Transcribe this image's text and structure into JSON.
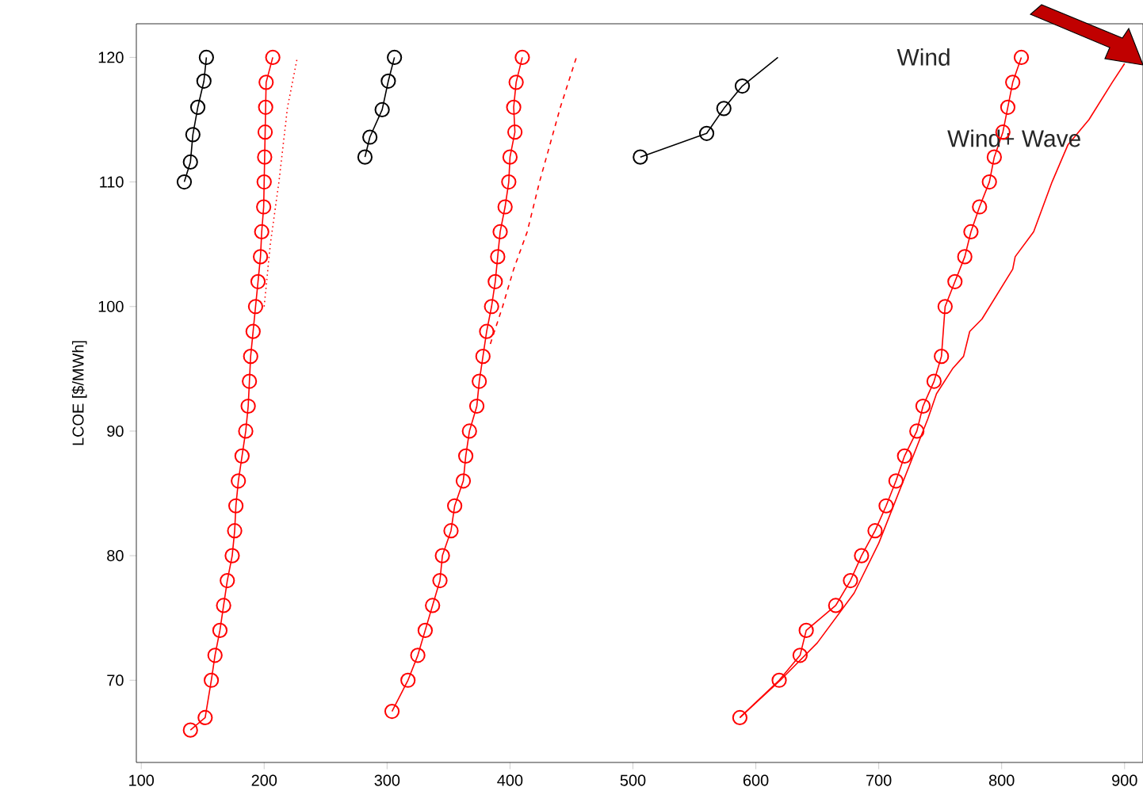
{
  "chart_data": {
    "type": "line",
    "ylabel": "LCOE [$/MWh]",
    "xlim": [
      96,
      915
    ],
    "ylim": [
      63.4,
      122.7
    ],
    "xticks": [
      100,
      200,
      300,
      400,
      500,
      600,
      700,
      800,
      900
    ],
    "yticks": [
      70,
      80,
      90,
      100,
      110,
      120
    ],
    "grid": false,
    "annotations": [
      "Wind",
      "Wind+ Wave"
    ],
    "series": [
      {
        "color": "#000000",
        "marker": "circle",
        "line_style": "solid",
        "x": [
          135,
          140,
          142,
          146,
          151,
          153
        ],
        "values": [
          110,
          111.6,
          113.8,
          116,
          118.1,
          120
        ]
      },
      {
        "color": "#ff0000",
        "marker": "circle",
        "line_style": "solid",
        "x": [
          140,
          152,
          157,
          160,
          164,
          167,
          170,
          174,
          176,
          177,
          179,
          182,
          185,
          187,
          188,
          189,
          191,
          193,
          195,
          197,
          198,
          199.6,
          200,
          200.4,
          200.8,
          201.2,
          201.6,
          207
        ],
        "values": [
          66,
          67,
          70,
          72,
          74,
          76,
          78,
          80,
          82,
          84,
          86,
          88,
          90,
          92,
          94,
          96,
          98,
          100,
          102,
          104,
          106,
          108,
          110,
          112,
          114,
          116,
          118,
          120
        ]
      },
      {
        "color": "#ff0000",
        "marker": "none",
        "line_style": "dotted",
        "x": [
          200,
          205,
          212,
          219,
          227
        ],
        "values": [
          100,
          105,
          110,
          116,
          120
        ]
      },
      {
        "color": "#000000",
        "marker": "circle",
        "line_style": "solid",
        "x": [
          282,
          286,
          296,
          301,
          306
        ],
        "values": [
          112,
          113.6,
          115.8,
          118.1,
          120
        ]
      },
      {
        "color": "#ff0000",
        "marker": "circle",
        "line_style": "solid",
        "x": [
          304,
          317,
          325,
          331,
          337,
          343,
          345,
          352,
          355,
          362,
          364,
          367,
          373,
          375,
          378,
          381,
          385,
          388,
          390,
          392,
          396,
          399,
          400,
          404,
          403,
          405,
          410
        ],
        "values": [
          67.5,
          70,
          72,
          74,
          76,
          78,
          80,
          82,
          84,
          86,
          88,
          90,
          92,
          94,
          96,
          98,
          100,
          102,
          104,
          106,
          108,
          110,
          112,
          114,
          116,
          118,
          120
        ]
      },
      {
        "color": "#ff0000",
        "marker": "none",
        "line_style": "dashed",
        "x": [
          384,
          394,
          403,
          414,
          424,
          441,
          454
        ],
        "values": [
          97,
          100,
          103,
          106,
          110,
          116,
          120
        ]
      },
      {
        "color": "#000000",
        "marker": "none",
        "line_style": "solid",
        "x": [
          506,
          560,
          574,
          589,
          618
        ],
        "values": [
          112,
          113.9,
          115.9,
          117.7,
          120
        ]
      },
      {
        "type": "scatter",
        "color": "#000000",
        "marker": "circle",
        "x": [
          506,
          560,
          574,
          589
        ],
        "values": [
          112,
          113.9,
          115.9,
          117.7
        ]
      },
      {
        "color": "#ff0000",
        "marker": "circle",
        "line_style": "solid",
        "x": [
          587,
          619,
          636,
          641,
          665,
          677,
          686,
          697,
          706,
          714,
          721,
          731,
          736,
          745,
          751,
          754,
          762,
          770,
          775,
          782,
          790,
          794,
          801,
          805,
          809,
          816
        ],
        "values": [
          67,
          70,
          72,
          74,
          76,
          78,
          80,
          82,
          84,
          86,
          88,
          90,
          92,
          94,
          96,
          100,
          102,
          104,
          106,
          108,
          110,
          112,
          114,
          116,
          118,
          120
        ]
      },
      {
        "color": "#ff0000",
        "marker": "none",
        "line_style": "solid",
        "x": [
          587,
          620,
          650,
          680,
          700,
          720,
          740,
          747,
          760,
          769,
          774,
          784,
          809,
          811,
          826,
          841,
          854,
          871,
          890,
          900
        ],
        "values": [
          67,
          70,
          73,
          77,
          81,
          86,
          91,
          93,
          95,
          96,
          98,
          99,
          103,
          104,
          106,
          110,
          113,
          115,
          118,
          119.5
        ]
      }
    ]
  }
}
